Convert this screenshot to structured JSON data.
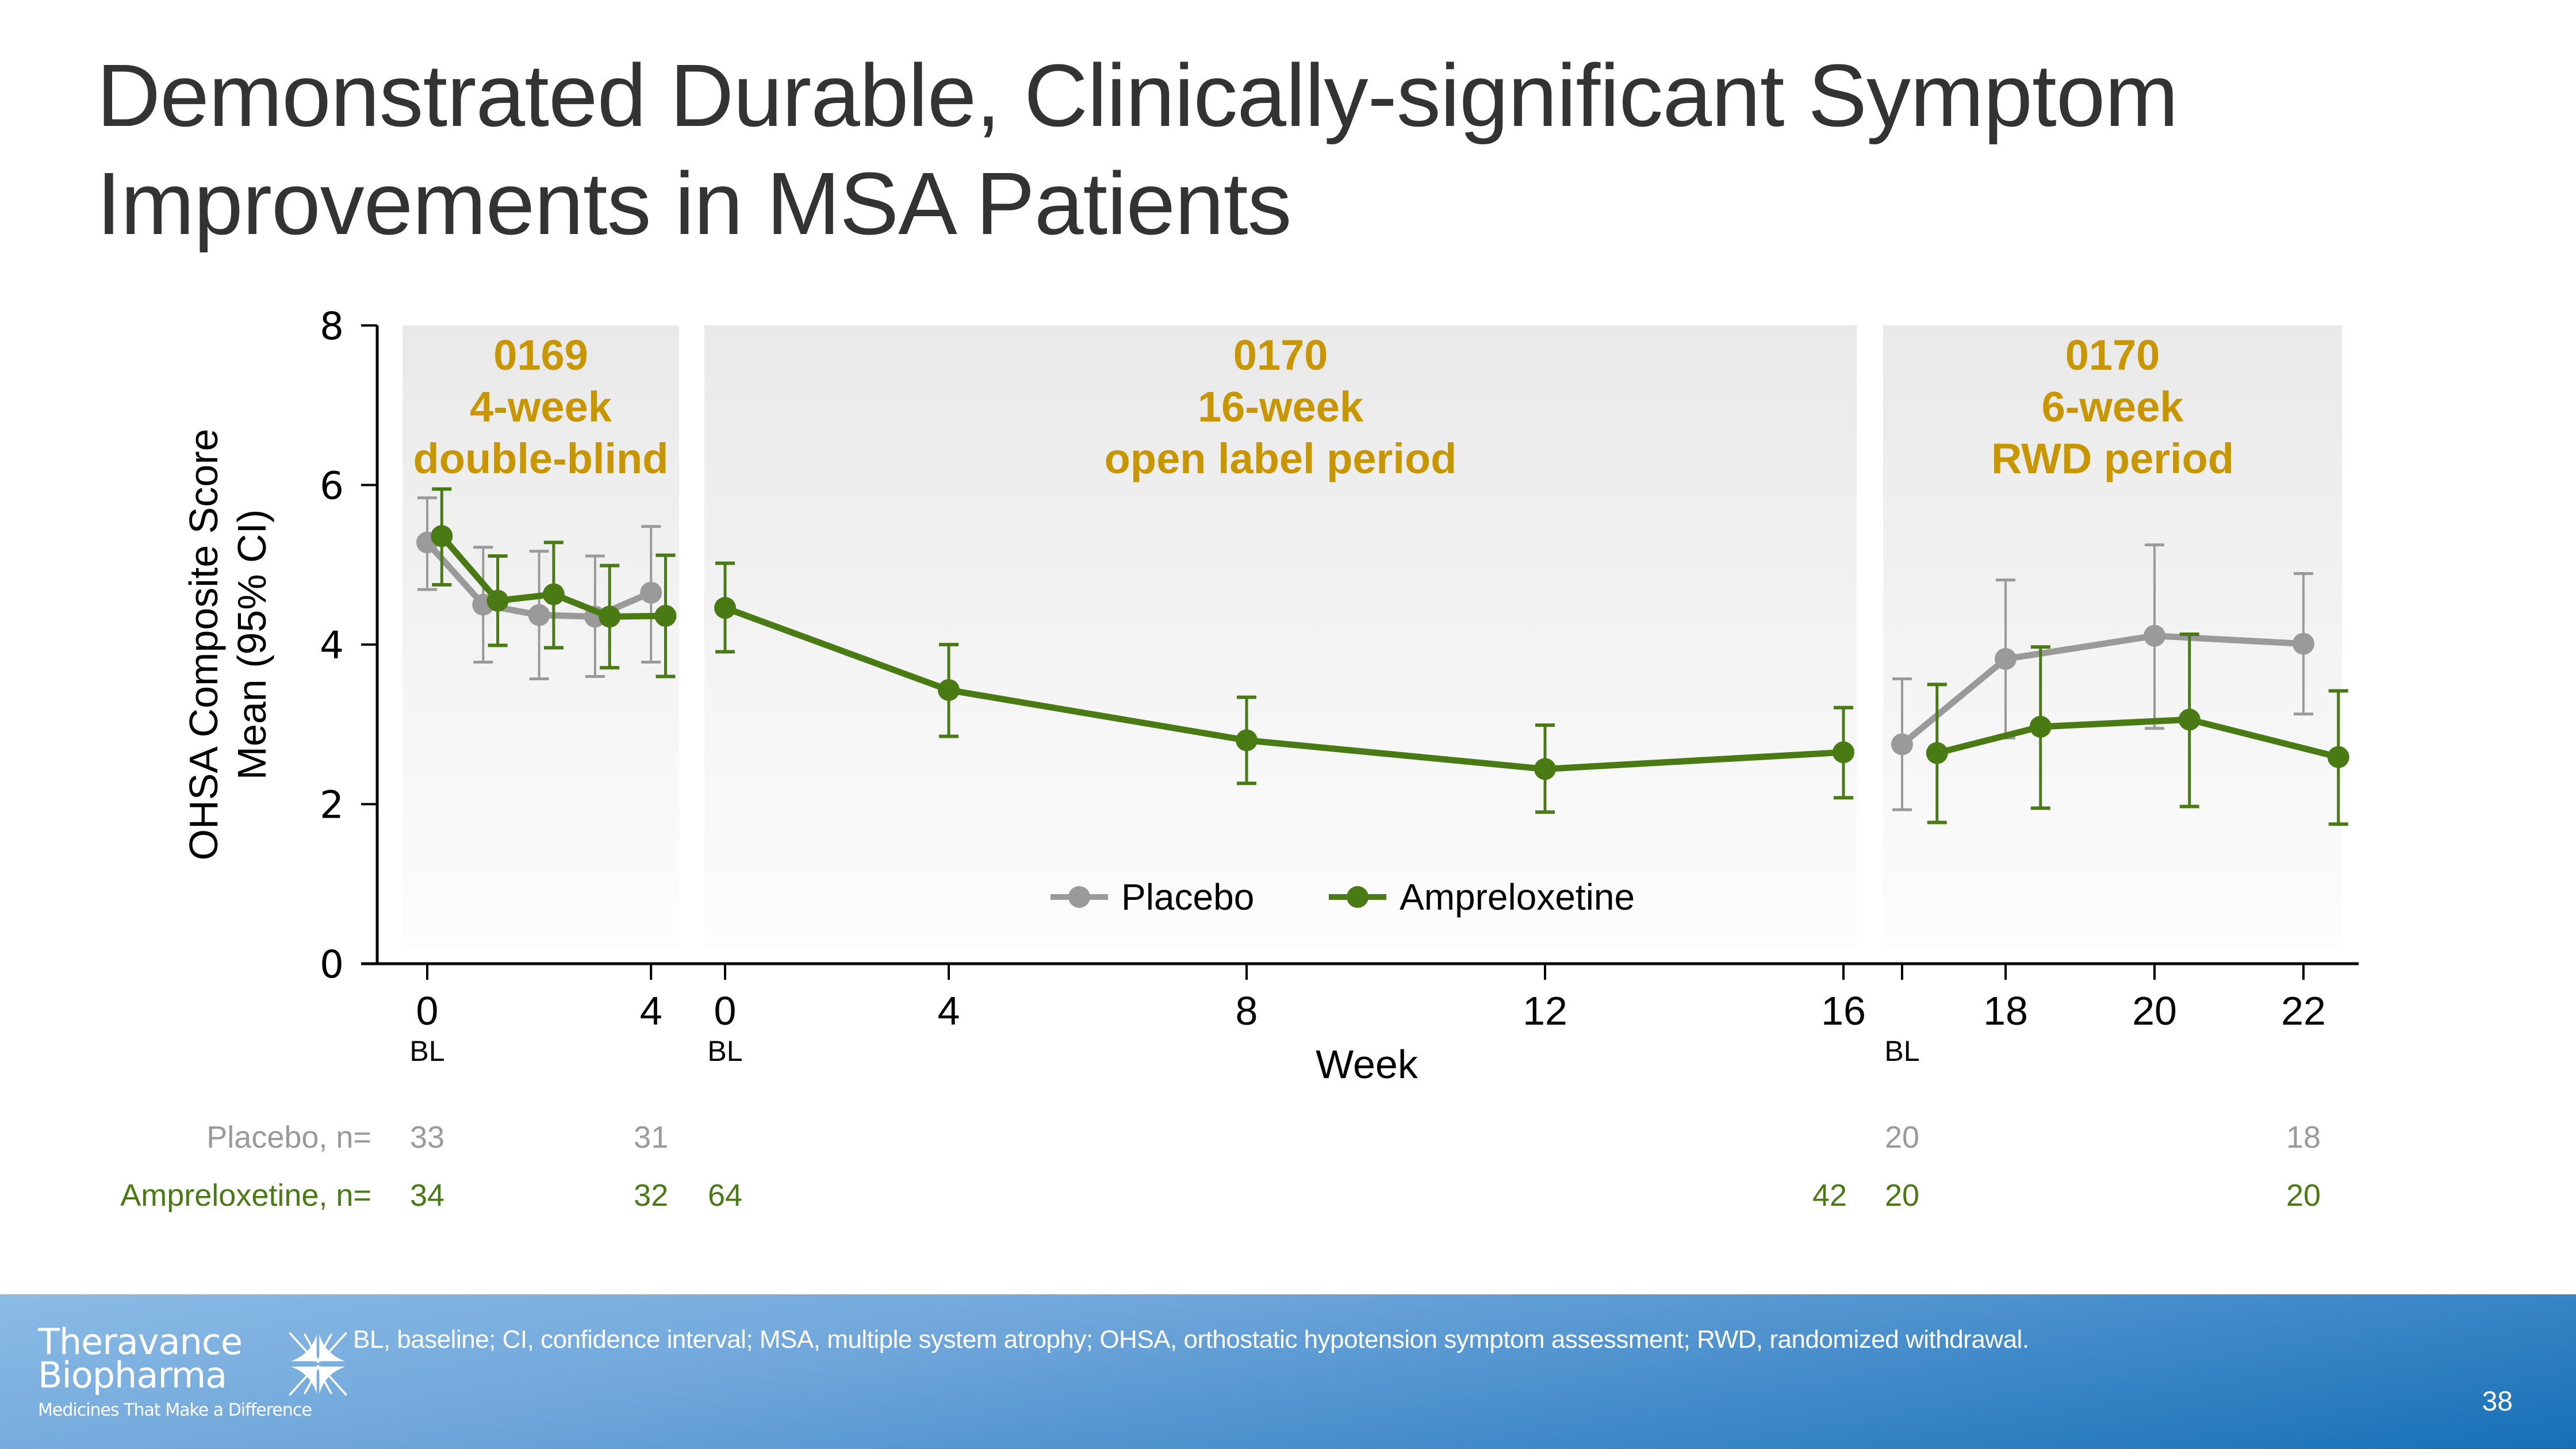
{
  "slide": {
    "title_lines": [
      "Demonstrated Durable, Clinically-significant Symptom",
      "Improvements in MSA Patients"
    ],
    "footnote": "BL, baseline; CI, confidence interval; MSA, multiple system atrophy; OHSA, orthostatic hypotension symptom assessment; RWD, randomized withdrawal.",
    "page_number": "38",
    "logo": {
      "line1": "Theravance",
      "line2": "Biopharma",
      "tagline": "Medicines That Make a Difference",
      "icon": "starburst-logo-icon"
    }
  },
  "colors": {
    "placebo": "#9a9a9a",
    "ampreloxetine": "#4a7a14",
    "phase_label": "#c89600",
    "panel_bg": "#e9e9e9",
    "title": "#333333",
    "axis": "#000000"
  },
  "chart_data": {
    "type": "line",
    "title": "",
    "xlabel": "Week",
    "ylabel": [
      "OHSA Composite Score",
      "Mean (95% CI)"
    ],
    "ylim": [
      0,
      8
    ],
    "yticks": [
      0,
      2,
      4,
      6,
      8
    ],
    "grid": false,
    "legend": {
      "placement": "bottom-center",
      "entries": [
        {
          "name": "Placebo",
          "series": "placebo"
        },
        {
          "name": "Ampreloxetine",
          "series": "ampreloxetine"
        }
      ]
    },
    "phases": [
      {
        "id": "p0169",
        "label": [
          "0169",
          "4-week",
          "double-blind"
        ],
        "week_range": [
          0,
          4
        ],
        "ticks": [
          {
            "week": 0,
            "label": "0",
            "sub": "BL"
          },
          {
            "week": 4,
            "label": "4",
            "sub": ""
          }
        ]
      },
      {
        "id": "p0170ol",
        "label": [
          "0170",
          "16-week",
          "open label period"
        ],
        "week_range": [
          0,
          16
        ],
        "ticks": [
          {
            "week": 0,
            "label": "0",
            "sub": "BL"
          },
          {
            "week": 4,
            "label": "4",
            "sub": ""
          },
          {
            "week": 8,
            "label": "8",
            "sub": ""
          },
          {
            "week": 12,
            "label": "12",
            "sub": ""
          },
          {
            "week": 16,
            "label": "16",
            "sub": ""
          }
        ]
      },
      {
        "id": "p0170rwd",
        "label": [
          "0170",
          "6-week",
          "RWD period"
        ],
        "week_range": [
          16,
          22
        ],
        "ticks": [
          {
            "week": 16,
            "label": "",
            "sub": "BL"
          },
          {
            "week": 18,
            "label": "18",
            "sub": ""
          },
          {
            "week": 20,
            "label": "20",
            "sub": ""
          },
          {
            "week": 22,
            "label": "22",
            "sub": ""
          }
        ]
      }
    ],
    "series": [
      {
        "name": "Placebo",
        "key": "placebo",
        "segments": [
          {
            "phase": "p0169",
            "points": [
              {
                "week": 0,
                "mean": 5.28,
                "lo": 4.69,
                "hi": 5.84
              },
              {
                "week": 1,
                "mean": 4.5,
                "lo": 3.78,
                "hi": 5.22
              },
              {
                "week": 2,
                "mean": 4.37,
                "lo": 3.57,
                "hi": 5.17
              },
              {
                "week": 3,
                "mean": 4.35,
                "lo": 3.6,
                "hi": 5.11
              },
              {
                "week": 4,
                "mean": 4.65,
                "lo": 3.78,
                "hi": 5.48
              }
            ]
          },
          {
            "phase": "p0170rwd",
            "points": [
              {
                "week": 16,
                "mean": 2.75,
                "lo": 1.93,
                "hi": 3.57
              },
              {
                "week": 18,
                "mean": 3.82,
                "lo": 2.83,
                "hi": 4.81
              },
              {
                "week": 20,
                "mean": 4.11,
                "lo": 2.95,
                "hi": 5.25
              },
              {
                "week": 22,
                "mean": 4.01,
                "lo": 3.13,
                "hi": 4.89
              }
            ]
          }
        ]
      },
      {
        "name": "Ampreloxetine",
        "key": "ampreloxetine",
        "segments": [
          {
            "phase": "p0169",
            "points": [
              {
                "week": 0,
                "mean": 5.36,
                "lo": 4.75,
                "hi": 5.95
              },
              {
                "week": 1,
                "mean": 4.55,
                "lo": 3.99,
                "hi": 5.11
              },
              {
                "week": 2,
                "mean": 4.63,
                "lo": 3.96,
                "hi": 5.28
              },
              {
                "week": 3,
                "mean": 4.35,
                "lo": 3.71,
                "hi": 4.99
              },
              {
                "week": 4,
                "mean": 4.36,
                "lo": 3.6,
                "hi": 5.12
              }
            ]
          },
          {
            "phase": "p0170ol",
            "points": [
              {
                "week": 0,
                "mean": 4.46,
                "lo": 3.91,
                "hi": 5.02
              },
              {
                "week": 4,
                "mean": 3.43,
                "lo": 2.85,
                "hi": 4.0
              },
              {
                "week": 8,
                "mean": 2.8,
                "lo": 2.26,
                "hi": 3.34
              },
              {
                "week": 12,
                "mean": 2.44,
                "lo": 1.9,
                "hi": 2.99
              },
              {
                "week": 16,
                "mean": 2.65,
                "lo": 2.08,
                "hi": 3.21
              }
            ]
          },
          {
            "phase": "p0170rwd",
            "points": [
              {
                "week": 16,
                "mean": 2.64,
                "lo": 1.77,
                "hi": 3.5
              },
              {
                "week": 18,
                "mean": 2.97,
                "lo": 1.95,
                "hi": 3.97
              },
              {
                "week": 20,
                "mean": 3.06,
                "lo": 1.97,
                "hi": 4.13
              },
              {
                "week": 22,
                "mean": 2.59,
                "lo": 1.75,
                "hi": 3.42
              }
            ]
          }
        ]
      }
    ],
    "n_table": {
      "rows": [
        {
          "label": "Placebo, n=",
          "key": "placebo",
          "cells": [
            {
              "phase": "p0169",
              "week": 0,
              "n": "33"
            },
            {
              "phase": "p0169",
              "week": 4,
              "n": "31"
            },
            {
              "phase": "p0170rwd",
              "week": 16,
              "n": "20"
            },
            {
              "phase": "p0170rwd",
              "week": 22,
              "n": "18"
            }
          ]
        },
        {
          "label": "Ampreloxetine, n=",
          "key": "ampreloxetine",
          "cells": [
            {
              "phase": "p0169",
              "week": 0,
              "n": "34"
            },
            {
              "phase": "p0169",
              "week": 4,
              "n": "32"
            },
            {
              "phase": "p0170ol",
              "week": 0,
              "n": "64"
            },
            {
              "phase": "p0170ol",
              "week": 16,
              "n": "42"
            },
            {
              "phase": "p0170rwd",
              "week": 16,
              "n": "20"
            },
            {
              "phase": "p0170rwd",
              "week": 22,
              "n": "20"
            }
          ]
        }
      ]
    }
  }
}
